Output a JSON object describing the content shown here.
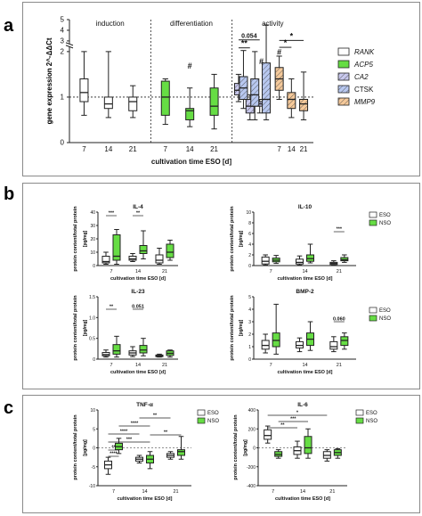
{
  "panels": [
    {
      "label": "a"
    },
    {
      "label": "b"
    },
    {
      "label": "c"
    }
  ],
  "chart_data": [
    {
      "id": "a",
      "type": "box",
      "title": "",
      "xlabel": "cultivation time ESO [d]",
      "ylabel": "gene expression 2^-ΔΔCt",
      "yticks": [
        "0",
        "1",
        "2",
        "3",
        "4",
        "5"
      ],
      "groups": [
        {
          "label": "induction",
          "categories": [
            "7",
            "14",
            "21"
          ]
        },
        {
          "label": "differentiation",
          "categories": [
            "7",
            "14",
            "21"
          ]
        },
        {
          "label": "activity",
          "categories": [
            "7",
            "14",
            "21"
          ]
        }
      ],
      "legend": [
        {
          "name": "RANK",
          "italic": true,
          "color": "#ffffff",
          "hatch": false
        },
        {
          "name": "ACP5",
          "italic": true,
          "color": "#66dd44",
          "hatch": false
        },
        {
          "name": "CA2",
          "italic": true,
          "color": "#c8c8ee",
          "hatch": true
        },
        {
          "name": "CTSK",
          "italic": false,
          "color": "#b8c8f0",
          "hatch": true
        },
        {
          "name": "MMP9",
          "italic": true,
          "color": "#f5c99a",
          "hatch": true
        }
      ],
      "series": [
        {
          "name": "RANK",
          "color": "#ffffff",
          "hatch": false,
          "boxes": [
            {
              "x": "7",
              "min": 0.6,
              "q1": 0.9,
              "med": 1.1,
              "q3": 1.4,
              "max": 2.0
            },
            {
              "x": "14",
              "min": 0.55,
              "q1": 0.75,
              "med": 0.85,
              "q3": 1.0,
              "max": 2.0
            },
            {
              "x": "21",
              "min": 0.55,
              "q1": 0.7,
              "med": 0.9,
              "q3": 1.0,
              "max": 1.25
            }
          ]
        },
        {
          "name": "ACP5",
          "color": "#66dd44",
          "hatch": false,
          "boxes": [
            {
              "x": "7",
              "min": 0.4,
              "q1": 0.6,
              "med": 1.0,
              "q3": 1.35,
              "max": 1.4
            },
            {
              "x": "14",
              "min": 0.35,
              "q1": 0.5,
              "med": 0.7,
              "q3": 0.75,
              "max": 1.2
            },
            {
              "x": "21",
              "min": 0.3,
              "q1": 0.6,
              "med": 0.8,
              "q3": 1.2,
              "max": 1.5
            }
          ]
        },
        {
          "name": "CA2",
          "color": "#c8c8ee",
          "hatch": true,
          "boxes": [
            {
              "x": "7",
              "min": 0.9,
              "q1": 1.05,
              "med": 1.15,
              "q3": 1.3,
              "max": 1.5
            },
            {
              "x": "14",
              "min": 0.5,
              "q1": 0.65,
              "med": 0.8,
              "q3": 0.95,
              "max": 1.05
            },
            {
              "x": "21",
              "min": 0.65,
              "q1": 0.8,
              "med": 0.85,
              "q3": 0.9,
              "max": 0.95
            }
          ]
        },
        {
          "name": "CTSK",
          "color": "#b8c8f0",
          "hatch": true,
          "boxes": [
            {
              "x": "7",
              "min": 0.75,
              "q1": 0.95,
              "med": 1.2,
              "q3": 1.45,
              "max": 2.1
            },
            {
              "x": "14",
              "min": 0.5,
              "q1": 0.8,
              "med": 1.05,
              "q3": 1.4,
              "max": 2.0
            },
            {
              "x": "21",
              "min": 0.5,
              "q1": 0.65,
              "med": 0.95,
              "q3": 1.75,
              "max": 4.5
            }
          ]
        },
        {
          "name": "MMP9",
          "color": "#f5c99a",
          "hatch": true,
          "boxes": [
            {
              "x": "7",
              "min": 0.95,
              "q1": 1.15,
              "med": 1.4,
              "q3": 1.65,
              "max": 1.9
            },
            {
              "x": "14",
              "min": 0.55,
              "q1": 0.75,
              "med": 0.95,
              "q3": 1.1,
              "max": 1.4
            },
            {
              "x": "21",
              "min": 0.5,
              "q1": 0.7,
              "med": 0.85,
              "q3": 0.95,
              "max": 1.55
            }
          ]
        }
      ],
      "annotations": {
        "stars1": "**",
        "p1": "0.054",
        "stars2": "*",
        "stars3": "*",
        "hash": "#"
      }
    },
    {
      "id": "b",
      "type": "box",
      "ylabel_common": "protein content/total protein",
      "xlabel": "cultivation time ESO [d]",
      "legend": [
        {
          "name": "ESO",
          "color": "#ffffff"
        },
        {
          "name": "NSO",
          "color": "#66dd44"
        }
      ],
      "subplots": [
        {
          "title": "IL-4",
          "unit": "[pg/mg]",
          "ylim": [
            0,
            40
          ],
          "yticks": [
            "0",
            "10",
            "20",
            "30",
            "40"
          ],
          "categories": [
            "7",
            "14",
            "21"
          ],
          "series": [
            {
              "name": "ESO",
              "boxes": [
                {
                  "min": 1,
                  "q1": 2,
                  "med": 3,
                  "q3": 7,
                  "max": 10
                },
                {
                  "min": 3,
                  "q1": 4,
                  "med": 5,
                  "q3": 7,
                  "max": 9
                },
                {
                  "min": 1,
                  "q1": 2,
                  "med": 4,
                  "q3": 8,
                  "max": 13
                }
              ]
            },
            {
              "name": "NSO",
              "boxes": [
                {
                  "min": 1,
                  "q1": 4,
                  "med": 7,
                  "q3": 23,
                  "max": 27
                },
                {
                  "min": 5,
                  "q1": 9,
                  "med": 11,
                  "q3": 15,
                  "max": 26
                },
                {
                  "min": 4,
                  "q1": 6,
                  "med": 10,
                  "q3": 16,
                  "max": 19
                }
              ]
            }
          ],
          "ann": [
            "***",
            "**"
          ]
        },
        {
          "title": "IL-10",
          "unit": "[pg/mg]",
          "ylim": [
            0,
            10
          ],
          "yticks": [
            "0",
            "2",
            "4",
            "6",
            "8",
            "10"
          ],
          "categories": [
            "7",
            "14",
            "21"
          ],
          "series": [
            {
              "name": "ESO",
              "boxes": [
                {
                  "min": 0.1,
                  "q1": 0.3,
                  "med": 0.8,
                  "q3": 1.6,
                  "max": 2.0
                },
                {
                  "min": 0.1,
                  "q1": 0.3,
                  "med": 0.6,
                  "q3": 1.2,
                  "max": 1.8
                },
                {
                  "min": 0.1,
                  "q1": 0.2,
                  "med": 0.4,
                  "q3": 0.6,
                  "max": 0.9
                }
              ]
            },
            {
              "name": "NSO",
              "boxes": [
                {
                  "min": 0.4,
                  "q1": 0.7,
                  "med": 1.0,
                  "q3": 1.4,
                  "max": 1.9
                },
                {
                  "min": 0.5,
                  "q1": 0.8,
                  "med": 1.3,
                  "q3": 2.0,
                  "max": 4.0
                },
                {
                  "min": 0.6,
                  "q1": 0.9,
                  "med": 1.1,
                  "q3": 1.5,
                  "max": 2.0
                }
              ]
            }
          ],
          "ann": [
            "***"
          ]
        },
        {
          "title": "IL-23",
          "unit": "[pg/mg]",
          "ylim": [
            0,
            1.5
          ],
          "yticks": [
            "0",
            "0.5",
            "1.0",
            "1.5"
          ],
          "categories": [
            "7",
            "14",
            "21"
          ],
          "series": [
            {
              "name": "ESO",
              "boxes": [
                {
                  "min": 0.05,
                  "q1": 0.08,
                  "med": 0.11,
                  "q3": 0.16,
                  "max": 0.22
                },
                {
                  "min": 0.06,
                  "q1": 0.1,
                  "med": 0.15,
                  "q3": 0.2,
                  "max": 0.3
                },
                {
                  "min": 0.05,
                  "q1": 0.06,
                  "med": 0.08,
                  "q3": 0.1,
                  "max": 0.12
                }
              ]
            },
            {
              "name": "NSO",
              "boxes": [
                {
                  "min": 0.05,
                  "q1": 0.12,
                  "med": 0.2,
                  "q3": 0.35,
                  "max": 0.55
                },
                {
                  "min": 0.08,
                  "q1": 0.15,
                  "med": 0.22,
                  "q3": 0.33,
                  "max": 0.5
                },
                {
                  "min": 0.05,
                  "q1": 0.09,
                  "med": 0.14,
                  "q3": 0.2,
                  "max": 0.22
                }
              ]
            }
          ],
          "ann": [
            "**",
            "0.051"
          ]
        },
        {
          "title": "BMP-2",
          "unit": "[pg/mg]",
          "ylim": [
            0,
            5
          ],
          "yticks": [
            "0",
            "1",
            "2",
            "3",
            "4",
            "5"
          ],
          "categories": [
            "7",
            "14",
            "21"
          ],
          "series": [
            {
              "name": "ESO",
              "boxes": [
                {
                  "min": 0.5,
                  "q1": 0.8,
                  "med": 1.1,
                  "q3": 1.5,
                  "max": 2.0
                },
                {
                  "min": 0.6,
                  "q1": 0.9,
                  "med": 1.1,
                  "q3": 1.4,
                  "max": 1.7
                },
                {
                  "min": 0.6,
                  "q1": 0.8,
                  "med": 1.0,
                  "q3": 1.4,
                  "max": 1.8
                }
              ]
            },
            {
              "name": "NSO",
              "boxes": [
                {
                  "min": 0.4,
                  "q1": 1.0,
                  "med": 1.5,
                  "q3": 2.1,
                  "max": 4.4
                },
                {
                  "min": 0.7,
                  "q1": 1.1,
                  "med": 1.6,
                  "q3": 2.1,
                  "max": 3.0
                },
                {
                  "min": 0.8,
                  "q1": 1.1,
                  "med": 1.5,
                  "q3": 1.8,
                  "max": 2.1
                }
              ]
            }
          ],
          "ann": [
            "0.060"
          ]
        }
      ]
    },
    {
      "id": "c",
      "type": "box",
      "ylabel_common": "protein content/total protein",
      "xlabel": "cultivation time ESO [d]",
      "legend": [
        {
          "name": "ESO",
          "color": "#ffffff"
        },
        {
          "name": "NSO",
          "color": "#66dd44"
        }
      ],
      "subplots": [
        {
          "title": "TNF-α",
          "unit": "[pg/mg]",
          "ylim": [
            -10,
            10
          ],
          "yticks": [
            "-10",
            "-5",
            "0",
            "5",
            "10"
          ],
          "categories": [
            "7",
            "14",
            "21"
          ],
          "series": [
            {
              "name": "ESO",
              "boxes": [
                {
                  "min": -7,
                  "q1": -5.5,
                  "med": -4.5,
                  "q3": -3.5,
                  "max": -2.5
                },
                {
                  "min": -4,
                  "q1": -3.5,
                  "med": -3,
                  "q3": -2.5,
                  "max": -2
                },
                {
                  "min": -3,
                  "q1": -2.5,
                  "med": -2,
                  "q3": -1.5,
                  "max": -1
                }
              ]
            },
            {
              "name": "NSO",
              "boxes": [
                {
                  "min": -1.5,
                  "q1": -0.5,
                  "med": 0.3,
                  "q3": 1.2,
                  "max": 2.5
                },
                {
                  "min": -5.5,
                  "q1": -4,
                  "med": -3,
                  "q3": -2,
                  "max": -1
                },
                {
                  "min": -3,
                  "q1": -2,
                  "med": -1,
                  "q3": -0.5,
                  "max": 3
                }
              ]
            }
          ],
          "ann": [
            "**",
            "****",
            "***",
            "****",
            "**",
            "*"
          ]
        },
        {
          "title": "IL-6",
          "unit": "[pg/mg]",
          "ylim": [
            -400,
            400
          ],
          "yticks": [
            "-400",
            "-200",
            "0",
            "200",
            "400"
          ],
          "categories": [
            "7",
            "14",
            "21"
          ],
          "series": [
            {
              "name": "ESO",
              "boxes": [
                {
                  "min": 50,
                  "q1": 90,
                  "med": 130,
                  "q3": 190,
                  "max": 230
                },
                {
                  "min": -110,
                  "q1": -70,
                  "med": -30,
                  "q3": 10,
                  "max": 70
                },
                {
                  "min": -140,
                  "q1": -110,
                  "med": -80,
                  "q3": -40,
                  "max": -20
                }
              ]
            },
            {
              "name": "NSO",
              "boxes": [
                {
                  "min": -110,
                  "q1": -90,
                  "med": -70,
                  "q3": -40,
                  "max": -20
                },
                {
                  "min": -110,
                  "q1": -60,
                  "med": 0,
                  "q3": 120,
                  "max": 200
                },
                {
                  "min": -110,
                  "q1": -80,
                  "med": -50,
                  "q3": -20,
                  "max": -10
                }
              ]
            }
          ],
          "ann": [
            "**",
            "***",
            "*"
          ]
        }
      ]
    }
  ]
}
